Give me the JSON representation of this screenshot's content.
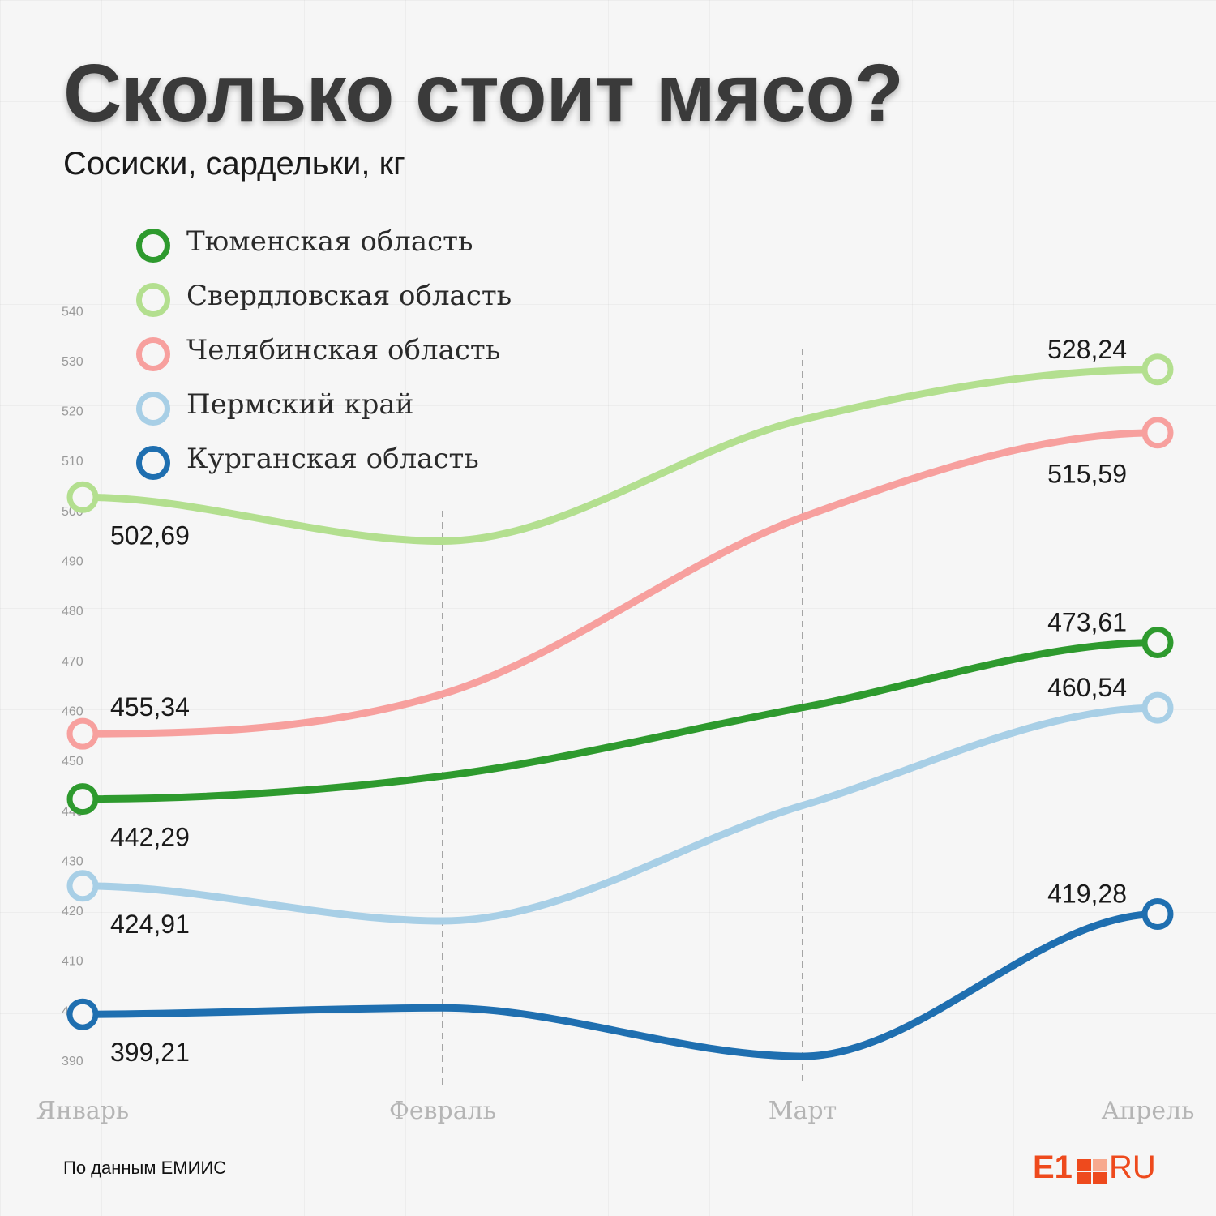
{
  "title": "Сколько стоит мясо?",
  "subtitle": "Сосиски, сардельки, кг",
  "source": "По данным ЕМИИС",
  "logo": {
    "prefix": "E1",
    "suffix": "RU",
    "color": "#ee4a1d"
  },
  "chart_data": {
    "type": "line",
    "title": "Сколько стоит мясо?",
    "subtitle": "Сосиски, сардельки, кг",
    "categories": [
      "Январь",
      "Февраль",
      "Март",
      "Апрель"
    ],
    "ylim": [
      390,
      540
    ],
    "y_ticks": [
      390,
      400,
      410,
      420,
      430,
      440,
      450,
      460,
      470,
      480,
      490,
      500,
      510,
      520,
      530,
      540
    ],
    "legend_position": "top-left",
    "grid": false,
    "series": [
      {
        "name": "Тюменская область",
        "color": "#2e9a2e",
        "values": [
          442.29,
          446.9,
          460.6,
          473.61
        ],
        "end_labels": [
          "442,29",
          "473,61"
        ]
      },
      {
        "name": "Свердловская область",
        "color": "#b3df8f",
        "values": [
          502.69,
          493.9,
          518.2,
          528.24
        ],
        "end_labels": [
          "502,69",
          "528,24"
        ]
      },
      {
        "name": "Челябинская область",
        "color": "#f7a09e",
        "values": [
          455.34,
          463.3,
          498.7,
          515.59
        ],
        "end_labels": [
          "455,34",
          "515,59"
        ]
      },
      {
        "name": "Пермский край",
        "color": "#a8cfe6",
        "values": [
          424.91,
          417.9,
          441.0,
          460.54
        ],
        "end_labels": [
          "424,91",
          "460,54"
        ]
      },
      {
        "name": "Курганская область",
        "color": "#1f6fb0",
        "values": [
          399.21,
          400.5,
          390.8,
          419.28
        ],
        "end_labels": [
          "399,21",
          "419,28"
        ]
      }
    ]
  }
}
